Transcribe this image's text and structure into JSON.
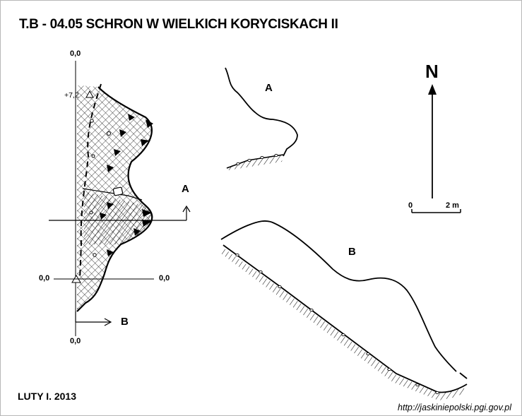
{
  "title": "T.B - 04.05  SCHRON W WIELKICH KORYCISKACH II",
  "date": "LUTY I. 2013",
  "source_url": "http://jaskiniepolski.pgi.gov.pl",
  "profile": {
    "top_elev": "0,0",
    "point_elev": "+7,2",
    "left_elev": "0,0",
    "right_elev": "0,0",
    "bottom_elev": "0,0",
    "section_a_marker": "A",
    "section_b_marker": "B"
  },
  "sections": {
    "a_label": "A",
    "b_label": "B"
  },
  "north": {
    "label": "N"
  },
  "scale": {
    "start": "0",
    "end": "2 m"
  },
  "colors": {
    "ink": "#000000",
    "background": "#ffffff",
    "frame": "#b8b8b8"
  }
}
